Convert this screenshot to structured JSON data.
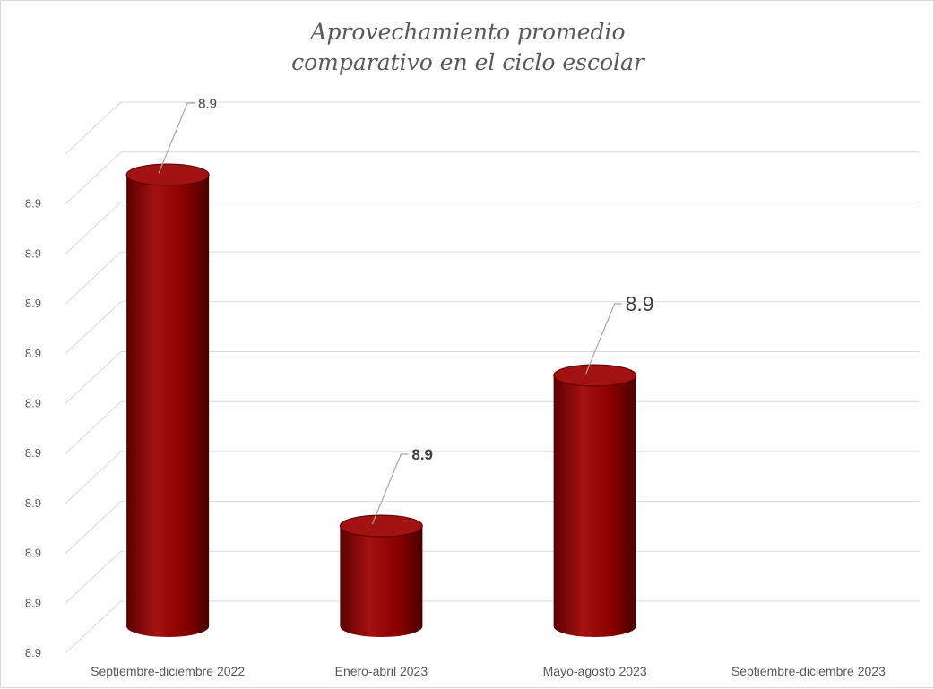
{
  "title_lines": [
    "Aprovechamiento promedio",
    "comparativo en el ciclo escolar"
  ],
  "colors": {
    "bar": "#8b0000",
    "bar_dark": "#5a0000",
    "bar_light": "#a31212",
    "gridline": "#d9d9d9",
    "text": "#595959",
    "label": "#404040"
  },
  "chart_data": {
    "type": "bar",
    "style": "3d-cylinder",
    "title": "Aprovechamiento promedio comparativo en el ciclo escolar",
    "categories": [
      "Septiembre-diciembre 2022",
      "Enero-abril 2023",
      "Mayo-agosto 2023",
      "Septiembre-diciembre 2023"
    ],
    "values": [
      8.94,
      8.87,
      8.9,
      null
    ],
    "data_labels": [
      "8.9",
      "8.9",
      "8.9",
      ""
    ],
    "y_tick_labels": [
      "8.9",
      "8.9",
      "8.9",
      "8.9",
      "8.9",
      "8.9",
      "8.9",
      "8.9",
      "8.9",
      "8.9"
    ],
    "ylim": [
      8.85,
      8.95
    ],
    "grid": true,
    "legend": "none"
  }
}
